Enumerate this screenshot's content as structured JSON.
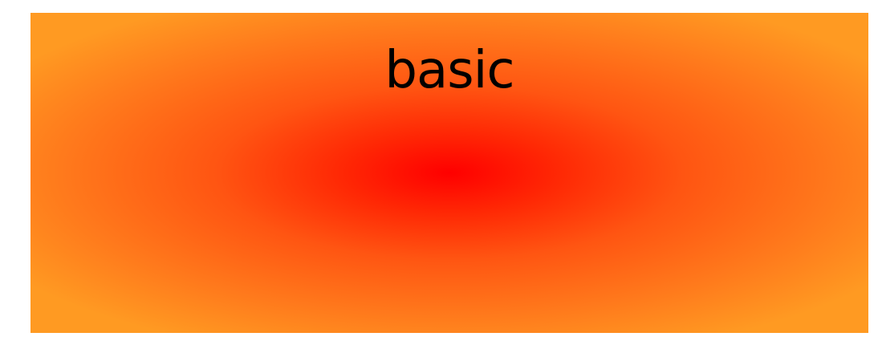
{
  "title": "basic",
  "gradient": {
    "type": "radial",
    "center_color": "#ff0000",
    "edge_color": "#ff9a22"
  },
  "background_color": "#ffffff"
}
